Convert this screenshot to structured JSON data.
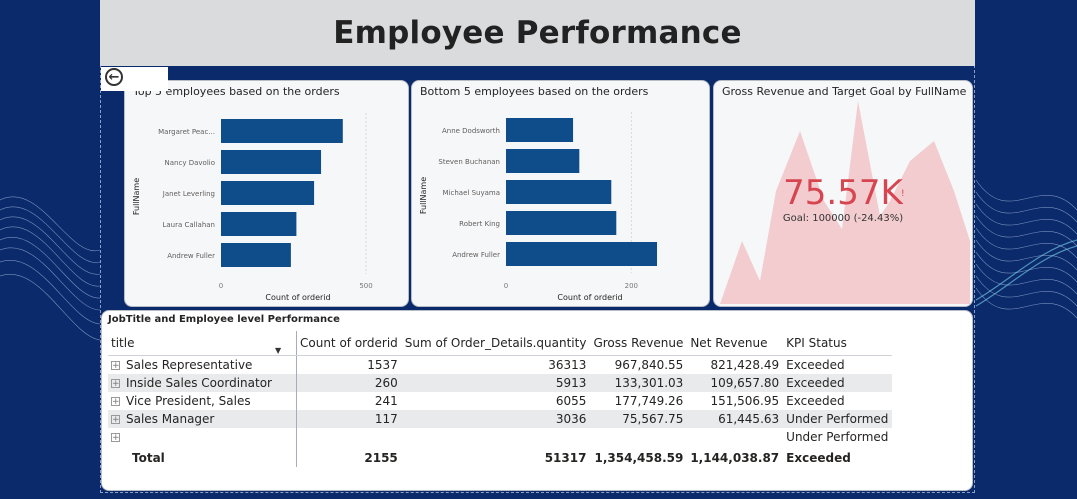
{
  "header": {
    "title": "Employee Performance"
  },
  "colors": {
    "bar": "#0f4c8a",
    "kpi": "#d64550",
    "kpi_area": "#f2c4c9"
  },
  "back_button": {
    "icon": "back-arrow-icon"
  },
  "top_chart": {
    "title": "Top 5 employees based on the orders",
    "ylabel": "FullName",
    "xlabel": "Count of orderid"
  },
  "bottom_chart": {
    "title": "Bottom 5 employees based on the orders",
    "ylabel": "FullName",
    "xlabel": "Count of orderid"
  },
  "kpi": {
    "title": "Gross Revenue and Target Goal by FullName",
    "value": "75.57K",
    "goal": "Goal: 100000 (-24.43%)"
  },
  "chart_data": [
    {
      "type": "bar",
      "orientation": "horizontal",
      "title": "Top 5 employees based on the orders",
      "categories": [
        "Margaret Peac...",
        "Nancy Davolio",
        "Janet Leverling",
        "Laura Callahan",
        "Andrew Fuller"
      ],
      "values": [
        420,
        345,
        321,
        260,
        241
      ],
      "xlabel": "Count of orderid",
      "ylabel": "FullName",
      "xlim": [
        0,
        600
      ],
      "ticks": [
        "0",
        "500"
      ],
      "tick_values": [
        0,
        500
      ]
    },
    {
      "type": "bar",
      "orientation": "horizontal",
      "title": "Bottom 5 employees based on the orders",
      "categories": [
        "Anne Dodsworth",
        "Steven Buchanan",
        "Michael Suyama",
        "Robert King",
        "Andrew Fuller"
      ],
      "values": [
        107,
        117,
        168,
        176,
        241
      ],
      "xlabel": "Count of orderid",
      "ylabel": "FullName",
      "xlim": [
        0,
        300
      ],
      "ticks": [
        "0",
        "200"
      ],
      "tick_values": [
        0,
        200
      ]
    }
  ],
  "table": {
    "title": "JobTitle and Employee level Performance",
    "columns": [
      "title",
      "Count of orderid",
      "Sum of Order_Details.quantity",
      "Gross Revenue",
      "Net Revenue",
      "KPI Status"
    ],
    "rows": [
      {
        "title": "Sales Representative",
        "count": "1537",
        "qty": "36313",
        "gross": "967,840.55",
        "net": "821,428.49",
        "kpi": "Exceeded"
      },
      {
        "title": "Inside Sales Coordinator",
        "count": "260",
        "qty": "5913",
        "gross": "133,301.03",
        "net": "109,657.80",
        "kpi": "Exceeded"
      },
      {
        "title": "Vice President, Sales",
        "count": "241",
        "qty": "6055",
        "gross": "177,749.26",
        "net": "151,506.95",
        "kpi": "Exceeded"
      },
      {
        "title": "Sales Manager",
        "count": "117",
        "qty": "3036",
        "gross": "75,567.75",
        "net": "61,445.63",
        "kpi": "Under Performed"
      },
      {
        "title": "",
        "count": "",
        "qty": "",
        "gross": "",
        "net": "",
        "kpi": "Under Performed"
      }
    ],
    "total": {
      "title": "Total",
      "count": "2155",
      "qty": "51317",
      "gross": "1,354,458.59",
      "net": "1,144,038.87",
      "kpi": "Exceeded"
    }
  }
}
